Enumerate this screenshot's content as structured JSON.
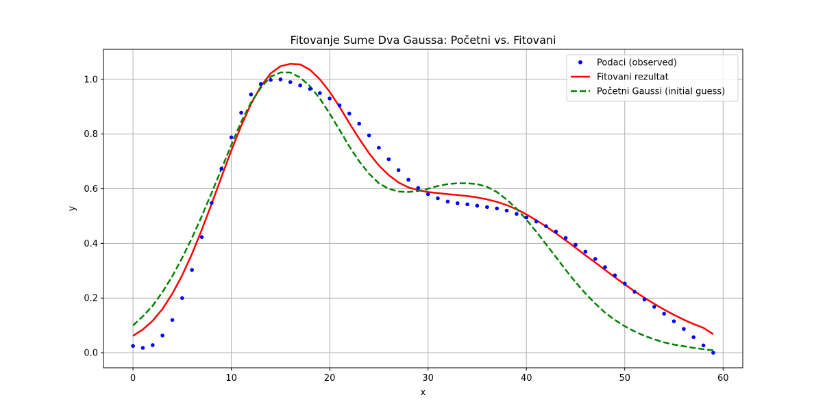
{
  "chart_data": {
    "type": "line",
    "title": "Fitovanje Sume Dva Gaussa: Početni vs. Fitovani",
    "xlabel": "x",
    "ylabel": "y",
    "xlim": [
      -3,
      62
    ],
    "ylim": [
      -0.055,
      1.11
    ],
    "xticks": [
      0,
      10,
      20,
      30,
      40,
      50,
      60
    ],
    "yticks": [
      0.0,
      0.2,
      0.4,
      0.6,
      0.8,
      1.0
    ],
    "xtick_labels": [
      "0",
      "10",
      "20",
      "30",
      "40",
      "50",
      "60"
    ],
    "ytick_labels": [
      "0.0",
      "0.2",
      "0.4",
      "0.6",
      "0.8",
      "1.0"
    ],
    "grid": true,
    "legend_position": "top-right",
    "series": [
      {
        "name": "Podaci (observed)",
        "kind": "scatter",
        "color": "#0000ff",
        "x": [
          0,
          1,
          2,
          3,
          4,
          5,
          6,
          7,
          8,
          9,
          10,
          11,
          12,
          13,
          14,
          15,
          16,
          17,
          18,
          19,
          20,
          21,
          22,
          23,
          24,
          25,
          26,
          27,
          28,
          29,
          30,
          31,
          32,
          33,
          34,
          35,
          36,
          37,
          38,
          39,
          40,
          41,
          42,
          43,
          44,
          45,
          46,
          47,
          48,
          49,
          50,
          51,
          52,
          53,
          54,
          55,
          56,
          57,
          58,
          59
        ],
        "y": [
          0.025,
          0.018,
          0.028,
          0.063,
          0.12,
          0.2,
          0.303,
          0.423,
          0.548,
          0.673,
          0.788,
          0.878,
          0.945,
          0.983,
          0.998,
          1.0,
          0.99,
          0.978,
          0.965,
          0.95,
          0.93,
          0.905,
          0.875,
          0.838,
          0.795,
          0.75,
          0.708,
          0.668,
          0.633,
          0.603,
          0.58,
          0.565,
          0.553,
          0.547,
          0.543,
          0.538,
          0.533,
          0.528,
          0.52,
          0.508,
          0.495,
          0.48,
          0.463,
          0.443,
          0.42,
          0.395,
          0.37,
          0.343,
          0.313,
          0.283,
          0.253,
          0.223,
          0.195,
          0.168,
          0.143,
          0.115,
          0.087,
          0.057,
          0.027,
          0.0
        ]
      },
      {
        "name": "Fitovani rezultat",
        "kind": "line",
        "color": "#ff0000",
        "dash": "solid",
        "x": [
          0,
          1,
          2,
          3,
          4,
          5,
          6,
          7,
          8,
          9,
          10,
          11,
          12,
          13,
          14,
          15,
          16,
          17,
          18,
          19,
          20,
          21,
          22,
          23,
          24,
          25,
          26,
          27,
          28,
          29,
          30,
          31,
          32,
          33,
          34,
          35,
          36,
          37,
          38,
          39,
          40,
          41,
          42,
          43,
          44,
          45,
          46,
          47,
          48,
          49,
          50,
          51,
          52,
          53,
          54,
          55,
          56,
          57,
          58,
          59
        ],
        "y": [
          0.062,
          0.085,
          0.117,
          0.16,
          0.216,
          0.283,
          0.362,
          0.45,
          0.545,
          0.643,
          0.74,
          0.83,
          0.91,
          0.975,
          1.022,
          1.048,
          1.057,
          1.055,
          1.035,
          1.0,
          0.955,
          0.9,
          0.84,
          0.783,
          0.73,
          0.685,
          0.65,
          0.623,
          0.605,
          0.595,
          0.588,
          0.584,
          0.58,
          0.577,
          0.573,
          0.568,
          0.561,
          0.552,
          0.54,
          0.525,
          0.506,
          0.485,
          0.462,
          0.437,
          0.411,
          0.384,
          0.357,
          0.33,
          0.303,
          0.276,
          0.25,
          0.225,
          0.201,
          0.179,
          0.158,
          0.139,
          0.121,
          0.105,
          0.091,
          0.068
        ]
      },
      {
        "name": "Početni Gaussi (initial guess)",
        "kind": "line",
        "color": "#008000",
        "dash": "dashed",
        "x": [
          0,
          1,
          2,
          3,
          4,
          5,
          6,
          7,
          8,
          9,
          10,
          11,
          12,
          13,
          14,
          15,
          16,
          17,
          18,
          19,
          20,
          21,
          22,
          23,
          24,
          25,
          26,
          27,
          28,
          29,
          30,
          31,
          32,
          33,
          34,
          35,
          36,
          37,
          38,
          39,
          40,
          41,
          42,
          43,
          44,
          45,
          46,
          47,
          48,
          49,
          50,
          51,
          52,
          53,
          54,
          55,
          56,
          57,
          58,
          59
        ],
        "y": [
          0.1,
          0.133,
          0.172,
          0.222,
          0.28,
          0.347,
          0.42,
          0.5,
          0.585,
          0.672,
          0.76,
          0.845,
          0.915,
          0.97,
          1.01,
          1.025,
          1.025,
          1.007,
          0.975,
          0.93,
          0.875,
          0.815,
          0.755,
          0.7,
          0.655,
          0.62,
          0.6,
          0.59,
          0.588,
          0.592,
          0.6,
          0.61,
          0.617,
          0.62,
          0.62,
          0.617,
          0.607,
          0.588,
          0.56,
          0.527,
          0.487,
          0.443,
          0.397,
          0.35,
          0.303,
          0.258,
          0.217,
          0.18,
          0.147,
          0.12,
          0.097,
          0.078,
          0.062,
          0.049,
          0.038,
          0.03,
          0.024,
          0.018,
          0.013,
          0.009
        ]
      }
    ]
  }
}
